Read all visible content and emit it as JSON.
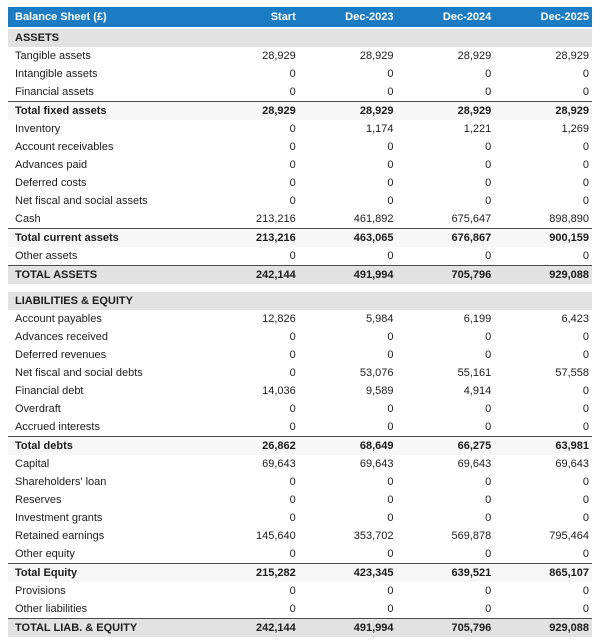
{
  "colors": {
    "header_bg": "#1b7cc3",
    "header_text": "#ffffff",
    "section_bg": "#e2e2e3",
    "subtotal_bg": "#f7f7f7",
    "grandtotal_bg": "#e2e2e3",
    "total_border": "#4b4b4b",
    "text": "#1c1c1c",
    "page_bg": "#ffffff"
  },
  "table": {
    "title": "Balance Sheet (£)",
    "columns": [
      "Balance Sheet (£)",
      "Start",
      "Dec-2023",
      "Dec-2024",
      "Dec-2025"
    ],
    "rows": [
      {
        "type": "section",
        "label": "ASSETS",
        "values": [
          "",
          "",
          "",
          ""
        ]
      },
      {
        "type": "data",
        "label": "Tangible assets",
        "values": [
          "28,929",
          "28,929",
          "28,929",
          "28,929"
        ]
      },
      {
        "type": "data",
        "label": "Intangible assets",
        "values": [
          "0",
          "0",
          "0",
          "0"
        ]
      },
      {
        "type": "data",
        "label": "Financial assets",
        "values": [
          "0",
          "0",
          "0",
          "0"
        ]
      },
      {
        "type": "subtotal",
        "label": "Total fixed assets",
        "values": [
          "28,929",
          "28,929",
          "28,929",
          "28,929"
        ]
      },
      {
        "type": "data",
        "label": "Inventory",
        "values": [
          "0",
          "1,174",
          "1,221",
          "1,269"
        ]
      },
      {
        "type": "data",
        "label": "Account receivables",
        "values": [
          "0",
          "0",
          "0",
          "0"
        ]
      },
      {
        "type": "data",
        "label": "Advances paid",
        "values": [
          "0",
          "0",
          "0",
          "0"
        ]
      },
      {
        "type": "data",
        "label": "Deferred costs",
        "values": [
          "0",
          "0",
          "0",
          "0"
        ]
      },
      {
        "type": "data",
        "label": "Net fiscal and social assets",
        "values": [
          "0",
          "0",
          "0",
          "0"
        ]
      },
      {
        "type": "data",
        "label": "Cash",
        "values": [
          "213,216",
          "461,892",
          "675,647",
          "898,890"
        ]
      },
      {
        "type": "subtotal",
        "label": "Total current assets",
        "values": [
          "213,216",
          "463,065",
          "676,867",
          "900,159"
        ]
      },
      {
        "type": "data",
        "label": "Other assets",
        "values": [
          "0",
          "0",
          "0",
          "0"
        ]
      },
      {
        "type": "grandtotal",
        "label": "TOTAL ASSETS",
        "values": [
          "242,144",
          "491,994",
          "705,796",
          "929,088"
        ]
      },
      {
        "type": "gap",
        "label": "",
        "values": []
      },
      {
        "type": "section",
        "label": "LIABILITIES & EQUITY",
        "values": [
          "",
          "",
          "",
          ""
        ]
      },
      {
        "type": "data",
        "label": "Account payables",
        "values": [
          "12,826",
          "5,984",
          "6,199",
          "6,423"
        ]
      },
      {
        "type": "data",
        "label": "Advances received",
        "values": [
          "0",
          "0",
          "0",
          "0"
        ]
      },
      {
        "type": "data",
        "label": "Deferred revenues",
        "values": [
          "0",
          "0",
          "0",
          "0"
        ]
      },
      {
        "type": "data",
        "label": "Net fiscal and social debts",
        "values": [
          "0",
          "53,076",
          "55,161",
          "57,558"
        ]
      },
      {
        "type": "data",
        "label": "Financial debt",
        "values": [
          "14,036",
          "9,589",
          "4,914",
          "0"
        ]
      },
      {
        "type": "data",
        "label": "Overdraft",
        "values": [
          "0",
          "0",
          "0",
          "0"
        ]
      },
      {
        "type": "data",
        "label": "Accrued interests",
        "values": [
          "0",
          "0",
          "0",
          "0"
        ]
      },
      {
        "type": "subtotal",
        "label": "Total debts",
        "values": [
          "26,862",
          "68,649",
          "66,275",
          "63,981"
        ]
      },
      {
        "type": "data",
        "label": "Capital",
        "values": [
          "69,643",
          "69,643",
          "69,643",
          "69,643"
        ]
      },
      {
        "type": "data",
        "label": "Shareholders' loan",
        "values": [
          "0",
          "0",
          "0",
          "0"
        ]
      },
      {
        "type": "data",
        "label": "Reserves",
        "values": [
          "0",
          "0",
          "0",
          "0"
        ]
      },
      {
        "type": "data",
        "label": "Investment grants",
        "values": [
          "0",
          "0",
          "0",
          "0"
        ]
      },
      {
        "type": "data",
        "label": "Retained earnings",
        "values": [
          "145,640",
          "353,702",
          "569,878",
          "795,464"
        ]
      },
      {
        "type": "data",
        "label": "Other equity",
        "values": [
          "0",
          "0",
          "0",
          "0"
        ]
      },
      {
        "type": "subtotal",
        "label": "Total Equity",
        "values": [
          "215,282",
          "423,345",
          "639,521",
          "865,107"
        ]
      },
      {
        "type": "data",
        "label": "Provisions",
        "values": [
          "0",
          "0",
          "0",
          "0"
        ]
      },
      {
        "type": "data",
        "label": "Other liabilities",
        "values": [
          "0",
          "0",
          "0",
          "0"
        ]
      },
      {
        "type": "grandtotal",
        "label": "TOTAL LIAB. & EQUITY",
        "values": [
          "242,144",
          "491,994",
          "705,796",
          "929,088"
        ]
      }
    ]
  }
}
